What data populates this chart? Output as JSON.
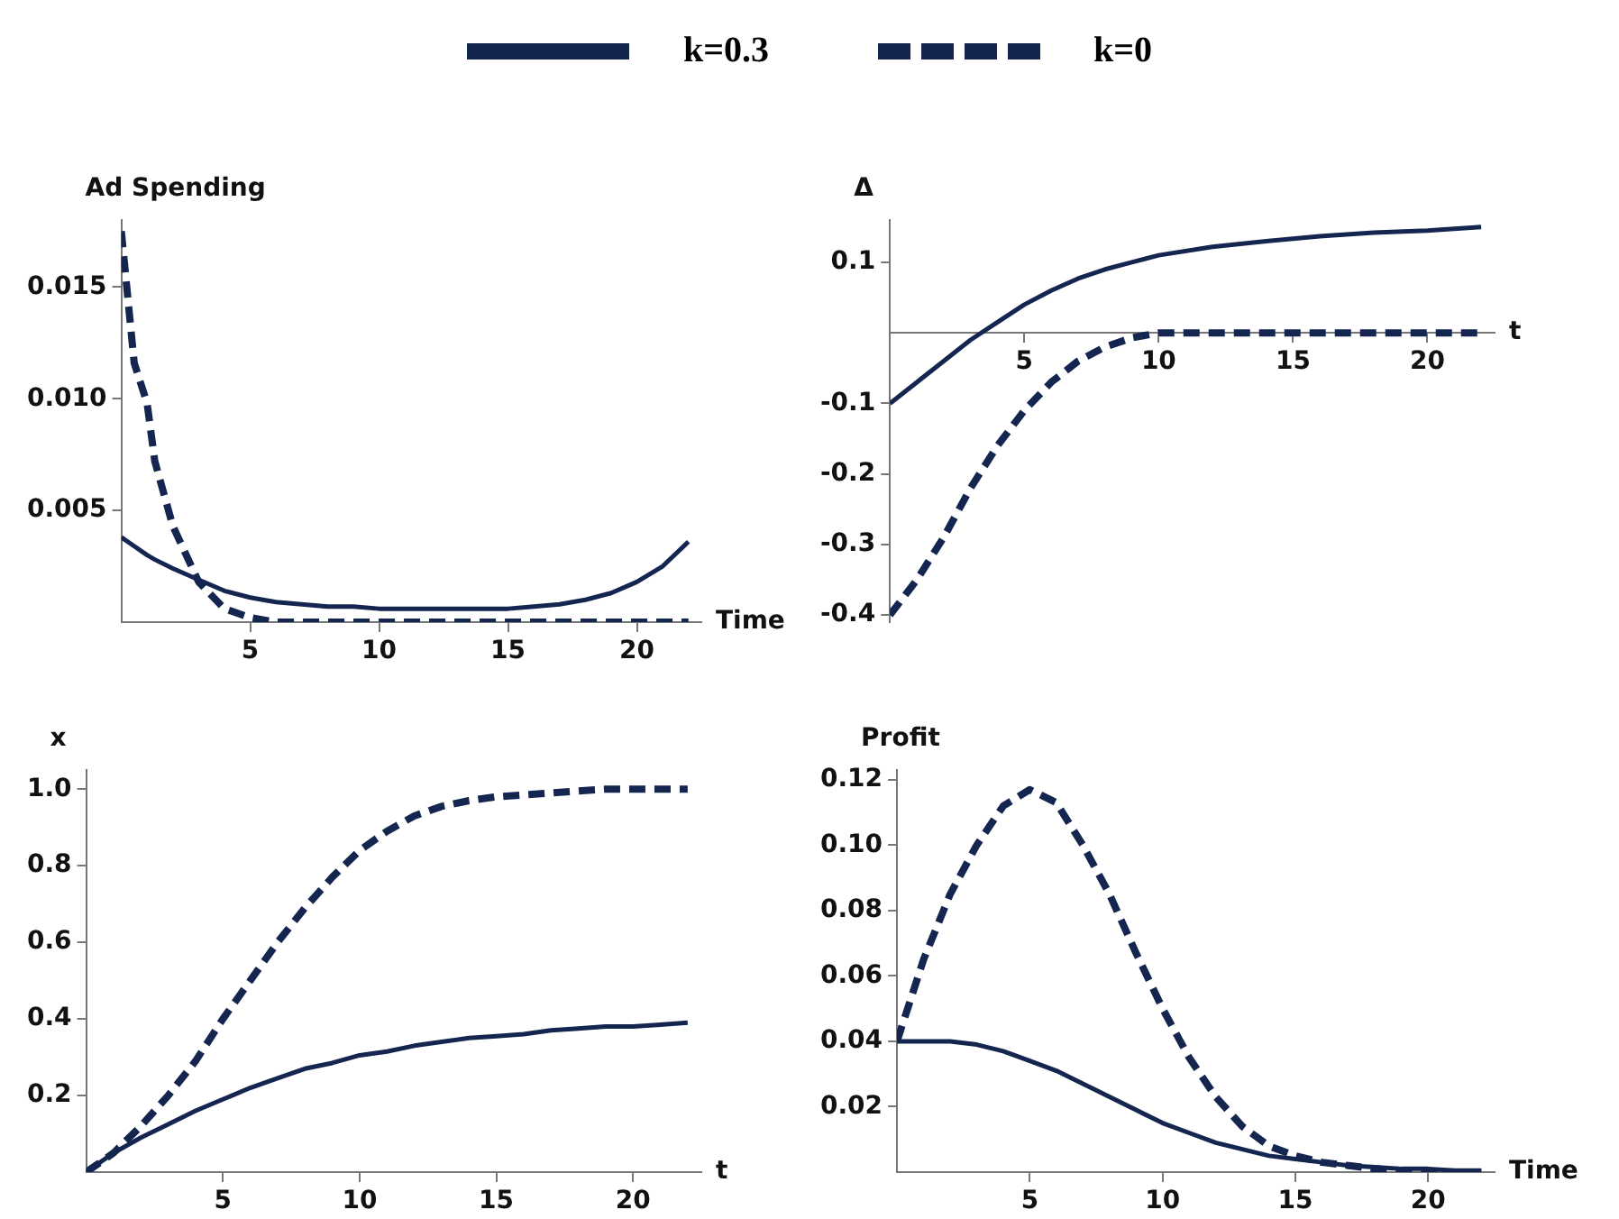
{
  "chart_data": [
    {
      "type": "line",
      "ylabel": "Ad Spending",
      "xlabel": "Time",
      "legend": "top",
      "grid": false,
      "x": [
        0,
        0.5,
        1,
        1.3,
        2,
        3,
        4,
        5,
        6,
        7,
        8,
        9,
        10,
        11,
        12,
        13,
        14,
        15,
        16,
        17,
        18,
        19,
        20,
        21,
        22
      ],
      "xlim": [
        0,
        22.5
      ],
      "xticks": [
        5,
        10,
        15,
        20
      ],
      "ylim": [
        0,
        0.018
      ],
      "yticks": [
        {
          "value": 0.005,
          "label": "0.005"
        },
        {
          "value": 0.01,
          "label": "0.010"
        },
        {
          "value": 0.015,
          "label": "0.015"
        }
      ],
      "series": [
        {
          "name": "k=0.3",
          "color": "#14254f",
          "line_style": "solid",
          "values": [
            0.0038,
            0.0034,
            0.003,
            0.0028,
            0.0024,
            0.0019,
            0.0014,
            0.0011,
            0.0009,
            0.0008,
            0.0007,
            0.0007,
            0.0006,
            0.0006,
            0.0006,
            0.0006,
            0.0006,
            0.0006,
            0.0007,
            0.0008,
            0.001,
            0.0013,
            0.0018,
            0.0025,
            0.0036
          ]
        },
        {
          "name": "k=0",
          "color": "#14254f",
          "line_style": "dashed",
          "values": [
            0.0175,
            0.0116,
            0.0098,
            0.0072,
            0.0043,
            0.0018,
            0.0006,
            0.0002,
            0,
            0,
            0,
            0,
            0,
            0,
            0,
            0,
            0,
            0,
            0,
            0,
            0,
            0,
            0,
            0,
            0
          ]
        }
      ]
    },
    {
      "type": "line",
      "ylabel": "Δ",
      "xlabel": "t",
      "grid": false,
      "x": [
        0,
        1,
        2,
        3,
        4,
        5,
        6,
        7,
        8,
        9,
        10,
        12,
        14,
        16,
        18,
        20,
        22
      ],
      "xlim": [
        0,
        22.5
      ],
      "xticks": [
        5,
        10,
        15,
        20
      ],
      "ylim": [
        -0.41,
        0.16
      ],
      "yticks": [
        -0.4,
        -0.3,
        -0.2,
        -0.1,
        0.1
      ],
      "series": [
        {
          "color": "#14254f",
          "line_style": "solid",
          "values": [
            -0.1,
            -0.07,
            -0.04,
            -0.01,
            0.015,
            0.04,
            0.06,
            0.077,
            0.09,
            0.1,
            0.11,
            0.122,
            0.13,
            0.137,
            0.142,
            0.145,
            0.15
          ]
        },
        {
          "color": "#14254f",
          "line_style": "dashed",
          "values": [
            -0.4,
            -0.35,
            -0.29,
            -0.22,
            -0.16,
            -0.11,
            -0.07,
            -0.04,
            -0.02,
            -0.007,
            0,
            0,
            0,
            0,
            0,
            0,
            0
          ]
        }
      ]
    },
    {
      "type": "line",
      "ylabel": "x",
      "xlabel": "t",
      "grid": false,
      "x": [
        0,
        1,
        2,
        3,
        4,
        5,
        6,
        7,
        8,
        9,
        10,
        11,
        12,
        13,
        14,
        15,
        16,
        17,
        18,
        19,
        20,
        21,
        22
      ],
      "xlim": [
        0,
        22.5
      ],
      "xticks": [
        5,
        10,
        15,
        20
      ],
      "ylim": [
        0,
        1.05
      ],
      "yticks": [
        0.2,
        0.4,
        0.6,
        0.8,
        {
          "value": 1,
          "label": "1.0"
        }
      ],
      "series": [
        {
          "color": "#14254f",
          "line_style": "solid",
          "values": [
            0,
            0.05,
            0.09,
            0.125,
            0.16,
            0.19,
            0.22,
            0.245,
            0.27,
            0.285,
            0.305,
            0.315,
            0.33,
            0.34,
            0.35,
            0.355,
            0.36,
            0.37,
            0.375,
            0.38,
            0.38,
            0.385,
            0.39
          ]
        },
        {
          "color": "#14254f",
          "line_style": "dashed",
          "values": [
            0,
            0.05,
            0.12,
            0.2,
            0.29,
            0.4,
            0.5,
            0.6,
            0.69,
            0.77,
            0.84,
            0.89,
            0.93,
            0.955,
            0.97,
            0.98,
            0.985,
            0.99,
            0.995,
            1,
            1,
            1,
            1
          ]
        }
      ]
    },
    {
      "type": "line",
      "ylabel": "Profit",
      "xlabel": "Time",
      "grid": false,
      "x": [
        0,
        1,
        2,
        3,
        4,
        5,
        6,
        7,
        8,
        9,
        10,
        11,
        12,
        13,
        14,
        15,
        16,
        17,
        18,
        19,
        20,
        21,
        22
      ],
      "xlim": [
        0,
        22.5
      ],
      "xticks": [
        5,
        10,
        15,
        20
      ],
      "ylim": [
        0,
        0.123
      ],
      "yticks": [
        0.02,
        0.04,
        0.06,
        0.08,
        {
          "value": 0.1,
          "label": "0.10"
        },
        0.12
      ],
      "series": [
        {
          "color": "#14254f",
          "line_style": "solid",
          "values": [
            0.04,
            0.04,
            0.04,
            0.039,
            0.037,
            0.034,
            0.031,
            0.027,
            0.023,
            0.019,
            0.015,
            0.012,
            0.009,
            0.007,
            0.005,
            0.004,
            0.003,
            0.002,
            0.0015,
            0.001,
            0.001,
            0.0005,
            0.0005
          ]
        },
        {
          "color": "#14254f",
          "line_style": "dashed",
          "values": [
            0.04,
            0.065,
            0.085,
            0.1,
            0.112,
            0.117,
            0.113,
            0.1,
            0.085,
            0.067,
            0.05,
            0.035,
            0.023,
            0.014,
            0.008,
            0.005,
            0.003,
            0.002,
            0.001,
            0.0005,
            0,
            0,
            0
          ]
        }
      ]
    }
  ]
}
